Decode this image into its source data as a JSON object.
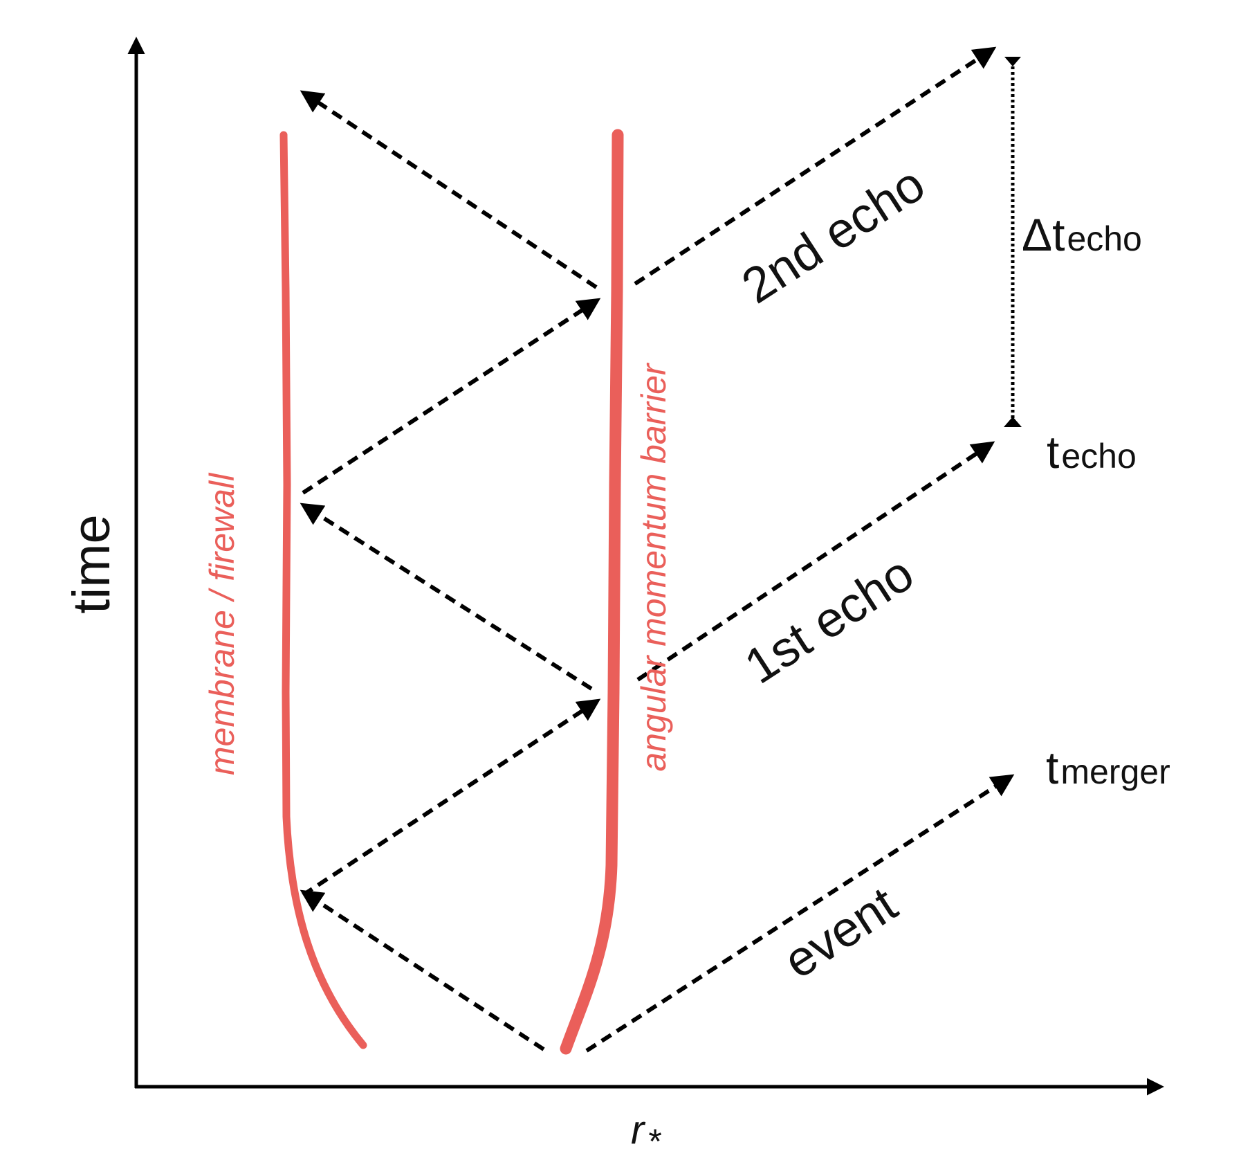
{
  "axes": {
    "y_label": "time",
    "x_label": "r",
    "x_label_subscript": "*"
  },
  "walls": {
    "left_label": "membrane / firewall",
    "right_label": "angular momentum barrier",
    "color": "#ea5f5a"
  },
  "paths": {
    "event_label": "event",
    "first_echo_label": "1st echo",
    "second_echo_label": "2nd echo"
  },
  "times": {
    "t_merger": {
      "base": "t",
      "sub": "merger"
    },
    "t_echo": {
      "base": "t",
      "sub": "echo"
    },
    "delta_t_echo": {
      "base": "Δt",
      "sub": "echo"
    }
  }
}
